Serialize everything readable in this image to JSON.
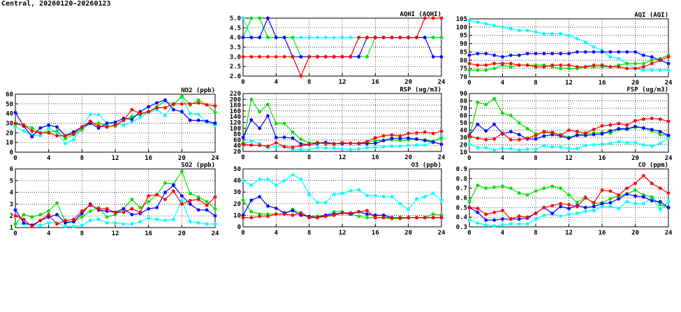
{
  "title": "Central, 20260120-20260123",
  "series_colors": [
    "#00ffff",
    "#00e000",
    "#0000ff",
    "#ff0000"
  ],
  "chart_data": [
    {
      "id": "no2",
      "type": "line",
      "title": "NO2 (ppb)",
      "ylim": [
        0,
        60
      ],
      "yticks": [
        "0",
        "10",
        "20",
        "30",
        "40",
        "50",
        "60"
      ],
      "xlim": [
        0,
        24
      ],
      "xticks": [
        "0",
        "4",
        "8",
        "12",
        "16",
        "20",
        "24"
      ],
      "grid": true,
      "series": [
        {
          "values": [
            26,
            22,
            18,
            17,
            25,
            20,
            9,
            13,
            26,
            39,
            39,
            30,
            29,
            28,
            31,
            36,
            41,
            44,
            38,
            50,
            57,
            40,
            39,
            31,
            28
          ]
        },
        {
          "values": [
            29,
            28,
            25,
            20,
            21,
            22,
            14,
            18,
            23,
            30,
            30,
            27,
            27,
            33,
            37,
            39,
            42,
            47,
            53,
            49,
            58,
            49,
            54,
            49,
            41
          ]
        },
        {
          "values": [
            41,
            27,
            16,
            25,
            28,
            26,
            17,
            21,
            26,
            30,
            25,
            30,
            31,
            35,
            34,
            42,
            47,
            51,
            54,
            44,
            42,
            33,
            33,
            32,
            30
          ]
        },
        {
          "values": [
            30,
            28,
            22,
            20,
            20,
            17,
            17,
            19,
            26,
            32,
            27,
            26,
            28,
            33,
            44,
            40,
            42,
            46,
            46,
            50,
            50,
            50,
            51,
            49,
            48
          ]
        }
      ]
    },
    {
      "id": "so2",
      "type": "line",
      "title": "SO2 (ppb)",
      "ylim": [
        1,
        6
      ],
      "yticks": [
        "1",
        "2",
        "3",
        "4",
        "5",
        "6"
      ],
      "xlim": [
        0,
        24
      ],
      "xticks": [
        "0",
        "4",
        "8",
        "12",
        "16",
        "20",
        "24"
      ],
      "grid": true,
      "series": [
        {
          "values": [
            1.3,
            1.3,
            1.2,
            1.2,
            1.4,
            1.4,
            1.1,
            1.1,
            1.2,
            1.6,
            1.7,
            1.4,
            1.4,
            1.3,
            1.3,
            1.5,
            1.8,
            1.7,
            1.6,
            1.7,
            3.3,
            1.5,
            1.4,
            1.3,
            1.3
          ]
        },
        {
          "values": [
            1.3,
            2.1,
            1.9,
            2.1,
            2.4,
            3.1,
            1.5,
            1.5,
            1.9,
            2.4,
            2.7,
            1.9,
            2.1,
            2.6,
            3.4,
            2.7,
            3.2,
            3.8,
            4.8,
            4.7,
            5.8,
            3.9,
            3.6,
            3.2,
            2.6
          ]
        },
        {
          "values": [
            2.5,
            1.4,
            1.2,
            1.6,
            1.9,
            2.1,
            1.4,
            1.5,
            2.2,
            3.0,
            2.5,
            2.4,
            2.3,
            2.6,
            2.1,
            2.2,
            2.6,
            2.7,
            4.0,
            4.6,
            3.7,
            3.0,
            2.5,
            2.5,
            2.0
          ]
        },
        {
          "values": [
            2.0,
            1.7,
            1.1,
            1.6,
            2.1,
            1.3,
            1.6,
            1.7,
            2.4,
            2.9,
            2.6,
            2.6,
            2.3,
            2.3,
            2.6,
            2.3,
            3.7,
            3.8,
            3.4,
            4.1,
            3.0,
            3.3,
            3.4,
            2.9,
            3.6
          ]
        }
      ]
    },
    {
      "id": "aqhi",
      "type": "line",
      "title": "AQHI (AQHI)",
      "ylim": [
        2,
        5
      ],
      "yticks": [
        "2.0",
        "2.5",
        "3.0",
        "3.5",
        "4.0",
        "4.5",
        "5.0"
      ],
      "xlim": [
        0,
        24
      ],
      "xticks": [
        "0",
        "4",
        "8",
        "12",
        "16",
        "20",
        "24"
      ],
      "grid": true,
      "series": [
        {
          "values": [
            5,
            4,
            4,
            4,
            4,
            4,
            4,
            4,
            4,
            4,
            4,
            4,
            4,
            4,
            4,
            4,
            4,
            4,
            4,
            4,
            4,
            4,
            4,
            4,
            4
          ]
        },
        {
          "values": [
            4,
            5,
            5,
            4,
            4,
            4,
            4,
            3,
            3,
            3,
            3,
            3,
            3,
            3,
            3,
            3,
            4,
            4,
            4,
            4,
            4,
            4,
            4,
            4,
            4
          ]
        },
        {
          "values": [
            4,
            4,
            4,
            5,
            4,
            4,
            3,
            3,
            3,
            3,
            3,
            3,
            3,
            3,
            3,
            4,
            4,
            4,
            4,
            4,
            4,
            4,
            4,
            3,
            3
          ]
        },
        {
          "values": [
            3,
            3,
            3,
            3,
            3,
            3,
            3,
            2,
            3,
            3,
            3,
            3,
            3,
            3,
            4,
            4,
            4,
            4,
            4,
            4,
            4,
            4,
            5,
            5,
            5
          ]
        }
      ]
    },
    {
      "id": "rsp",
      "type": "line",
      "title": "RSP (ug/m3)",
      "ylim": [
        20,
        220
      ],
      "yticks": [
        "20",
        "40",
        "60",
        "80",
        "100",
        "120",
        "140",
        "160",
        "180",
        "200",
        "220"
      ],
      "xlim": [
        0,
        24
      ],
      "xticks": [
        "0",
        "4",
        "8",
        "12",
        "16",
        "20",
        "24"
      ],
      "grid": true,
      "series": [
        {
          "values": [
            45,
            56,
            47,
            32,
            37,
            36,
            26,
            26,
            27,
            33,
            32,
            32,
            28,
            27,
            29,
            33,
            34,
            36,
            38,
            38,
            41,
            42,
            42,
            52,
            73
          ]
        },
        {
          "values": [
            50,
            200,
            157,
            182,
            116,
            117,
            87,
            62,
            49,
            51,
            51,
            46,
            48,
            48,
            48,
            50,
            57,
            58,
            60,
            58,
            60,
            62,
            60,
            55,
            65
          ]
        },
        {
          "values": [
            68,
            129,
            100,
            143,
            68,
            69,
            66,
            46,
            44,
            47,
            51,
            47,
            47,
            48,
            47,
            47,
            48,
            58,
            65,
            65,
            66,
            63,
            58,
            52,
            45
          ]
        },
        {
          "values": [
            45,
            42,
            41,
            38,
            50,
            37,
            34,
            40,
            44,
            50,
            47,
            46,
            50,
            48,
            48,
            54,
            67,
            74,
            77,
            73,
            82,
            84,
            87,
            82,
            90
          ]
        }
      ]
    },
    {
      "id": "o3",
      "type": "line",
      "title": "O3 (ppb)",
      "ylim": [
        0,
        50
      ],
      "yticks": [
        "0",
        "10",
        "20",
        "30",
        "40",
        "50"
      ],
      "xlim": [
        0,
        24
      ],
      "xticks": [
        "0",
        "4",
        "8",
        "12",
        "16",
        "20",
        "24"
      ],
      "grid": true,
      "series": [
        {
          "values": [
            40,
            36,
            41,
            41,
            36,
            40,
            45,
            41,
            28,
            21,
            21,
            28,
            29,
            31,
            32,
            27,
            27,
            26,
            26,
            20,
            15,
            24,
            26,
            29,
            23
          ]
        },
        {
          "values": [
            23,
            13,
            11,
            11,
            11,
            11,
            15,
            12,
            9,
            9,
            10,
            13,
            13,
            11,
            9,
            8,
            8,
            8,
            7,
            7,
            8,
            8,
            8,
            11,
            10
          ]
        },
        {
          "values": [
            10,
            23,
            26,
            18,
            16,
            12,
            14,
            10,
            9,
            8,
            10,
            11,
            12,
            11,
            13,
            11,
            10,
            10,
            8,
            8,
            8,
            8,
            8,
            8,
            8
          ]
        },
        {
          "values": [
            8,
            8,
            9,
            9,
            11,
            11,
            10,
            12,
            8,
            8,
            9,
            10,
            12,
            12,
            13,
            14,
            8,
            8,
            8,
            8,
            8,
            8,
            8,
            8,
            8
          ]
        }
      ]
    },
    {
      "id": "aqi",
      "type": "line",
      "title": "AQI (AQI)",
      "ylim": [
        70,
        105
      ],
      "yticks": [
        "70",
        "75",
        "80",
        "85",
        "90",
        "95",
        "100",
        "105"
      ],
      "xlim": [
        0,
        24
      ],
      "xticks": [
        "0",
        "4",
        "8",
        "12",
        "16",
        "20",
        "24"
      ],
      "grid": true,
      "series": [
        {
          "values": [
            104,
            103,
            102,
            101,
            100,
            99,
            98,
            98,
            97,
            96,
            96,
            96,
            95,
            93,
            91,
            88,
            86,
            82,
            81,
            78,
            75,
            74,
            74,
            74,
            74
          ]
        },
        {
          "values": [
            74,
            74,
            74,
            75,
            77,
            76,
            77,
            77,
            77,
            77,
            76,
            75,
            75,
            75,
            76,
            76,
            76,
            76,
            77,
            78,
            78,
            78,
            80,
            81,
            83
          ]
        },
        {
          "values": [
            83,
            84,
            84,
            83,
            82,
            83,
            83,
            84,
            84,
            84,
            84,
            84,
            84,
            85,
            85,
            85,
            85,
            85,
            85,
            85,
            85,
            83,
            82,
            80,
            78
          ]
        },
        {
          "values": [
            78,
            77,
            77,
            78,
            78,
            78,
            77,
            77,
            76,
            76,
            77,
            77,
            77,
            76,
            76,
            77,
            77,
            76,
            76,
            75,
            75,
            76,
            78,
            80,
            82
          ]
        }
      ]
    },
    {
      "id": "fsp",
      "type": "line",
      "title": "FSP (ug/m3)",
      "ylim": [
        10,
        90
      ],
      "yticks": [
        "10",
        "20",
        "30",
        "40",
        "50",
        "60",
        "70",
        "80",
        "90"
      ],
      "xlim": [
        0,
        24
      ],
      "xticks": [
        "0",
        "4",
        "8",
        "12",
        "16",
        "20",
        "24"
      ],
      "grid": true,
      "series": [
        {
          "values": [
            21,
            16,
            16,
            13,
            15,
            15,
            13,
            14,
            14,
            19,
            17,
            17,
            15,
            15,
            19,
            20,
            21,
            22,
            24,
            23,
            23,
            20,
            18,
            22,
            30
          ]
        },
        {
          "values": [
            30,
            78,
            75,
            83,
            63,
            60,
            50,
            42,
            35,
            37,
            36,
            34,
            30,
            34,
            35,
            36,
            37,
            36,
            41,
            41,
            44,
            43,
            39,
            34,
            33
          ]
        },
        {
          "values": [
            33,
            48,
            39,
            48,
            35,
            38,
            34,
            28,
            28,
            32,
            34,
            32,
            29,
            33,
            33,
            34,
            35,
            39,
            42,
            42,
            45,
            43,
            41,
            38,
            33
          ]
        },
        {
          "values": [
            32,
            29,
            27,
            28,
            36,
            27,
            27,
            29,
            33,
            38,
            37,
            33,
            40,
            38,
            36,
            41,
            46,
            47,
            49,
            47,
            53,
            55,
            56,
            55,
            52
          ]
        }
      ]
    },
    {
      "id": "co",
      "type": "line",
      "title": "CO (ppm)",
      "ylim": [
        0.3,
        0.9
      ],
      "yticks": [
        "0.3",
        "0.4",
        "0.5",
        "0.6",
        "0.7",
        "0.8",
        "0.9"
      ],
      "xlim": [
        0,
        24
      ],
      "xticks": [
        "0",
        "4",
        "8",
        "12",
        "16",
        "20",
        "24"
      ],
      "grid": true,
      "series": [
        {
          "values": [
            0.37,
            0.34,
            0.32,
            0.31,
            0.32,
            0.33,
            0.33,
            0.33,
            0.38,
            0.42,
            0.43,
            0.41,
            0.43,
            0.44,
            0.46,
            0.47,
            0.51,
            0.51,
            0.49,
            0.56,
            0.54,
            0.54,
            0.6,
            0.48,
            0.56
          ]
        },
        {
          "values": [
            0.56,
            0.73,
            0.7,
            0.71,
            0.72,
            0.7,
            0.65,
            0.63,
            0.67,
            0.7,
            0.72,
            0.7,
            0.63,
            0.55,
            0.61,
            0.54,
            0.55,
            0.59,
            0.62,
            0.64,
            0.68,
            0.63,
            0.61,
            0.53,
            0.5
          ]
        },
        {
          "values": [
            0.5,
            0.45,
            0.37,
            0.37,
            0.38,
            0.38,
            0.38,
            0.39,
            0.44,
            0.5,
            0.44,
            0.51,
            0.49,
            0.52,
            0.5,
            0.51,
            0.54,
            0.55,
            0.59,
            0.64,
            0.62,
            0.61,
            0.57,
            0.56,
            0.5
          ]
        },
        {
          "values": [
            0.5,
            0.49,
            0.43,
            0.45,
            0.47,
            0.38,
            0.41,
            0.4,
            0.44,
            0.5,
            0.52,
            0.54,
            0.53,
            0.51,
            0.6,
            0.55,
            0.68,
            0.67,
            0.63,
            0.7,
            0.75,
            0.83,
            0.75,
            0.7,
            0.65
          ]
        }
      ]
    }
  ]
}
